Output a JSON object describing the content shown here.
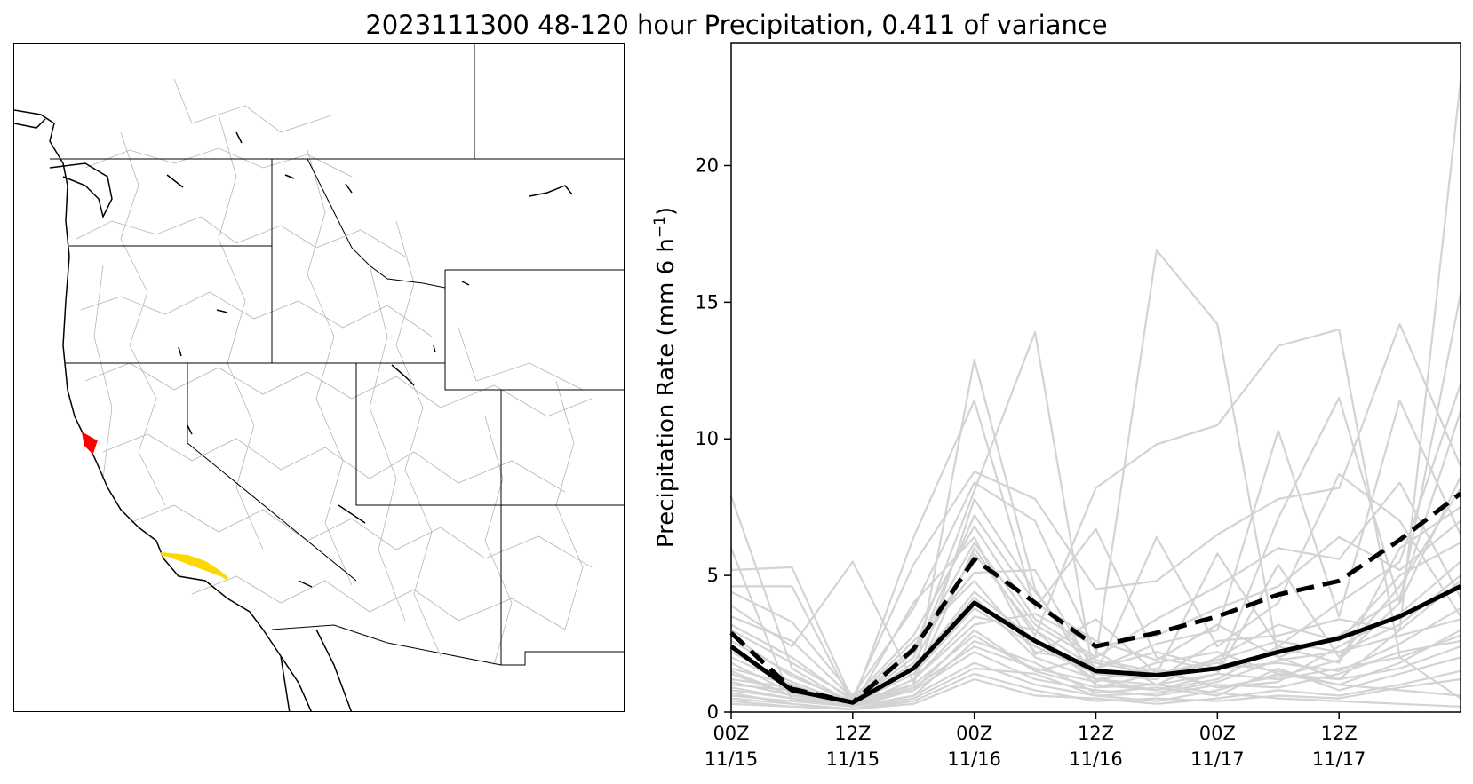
{
  "title": "2023111300 48-120 hour Precipitation, 0.411 of variance",
  "map": {
    "region": "Western United States",
    "highlight_colors": [
      "#ff0000",
      "#ffd700"
    ],
    "state_line_color": "#000000",
    "basin_line_color": "#b0b0b0"
  },
  "chart_data": {
    "type": "line",
    "ylabel_main": "Precipitation Rate (mm 6 h",
    "ylabel_sup": "−1",
    "ylabel_end": ")",
    "ylim": [
      0,
      24.5
    ],
    "xlim": [
      0,
      18
    ],
    "yticks": [
      0,
      5,
      10,
      15,
      20
    ],
    "xticks": [
      {
        "x": 0,
        "line1": "00Z",
        "line2": "11/15"
      },
      {
        "x": 3,
        "line1": "12Z",
        "line2": "11/15"
      },
      {
        "x": 6,
        "line1": "00Z",
        "line2": "11/16"
      },
      {
        "x": 9,
        "line1": "12Z",
        "line2": "11/16"
      },
      {
        "x": 12,
        "line1": "00Z",
        "line2": "11/17"
      },
      {
        "x": 15,
        "line1": "12Z",
        "line2": "11/17"
      }
    ],
    "x": [
      0,
      1.5,
      3,
      4.5,
      6,
      7.5,
      9,
      10.5,
      12,
      13.5,
      15,
      16.5,
      18
    ],
    "series": [
      {
        "style": "solid",
        "color": "#000000",
        "values": [
          2.4,
          0.8,
          0.35,
          1.6,
          4.0,
          2.6,
          1.5,
          1.35,
          1.6,
          2.2,
          2.7,
          3.5,
          4.6
        ]
      },
      {
        "style": "dashed",
        "color": "#000000",
        "values": [
          2.9,
          0.85,
          0.35,
          2.3,
          5.6,
          4.0,
          2.4,
          2.9,
          3.5,
          4.3,
          4.8,
          6.3,
          8.0
        ]
      }
    ],
    "ensemble_color": "#d3d3d3",
    "ensemble": [
      [
        7.9,
        1.6,
        0.3,
        1.0,
        12.9,
        4.5,
        1.2,
        1.0,
        0.7,
        0.5,
        0.4,
        0.3,
        0.2
      ],
      [
        5.2,
        5.3,
        0.4,
        2.2,
        8.1,
        13.9,
        0.9,
        1.4,
        1.8,
        1.5,
        1.0,
        0.8,
        0.6
      ],
      [
        3.9,
        2.4,
        5.5,
        1.1,
        6.0,
        2.8,
        8.2,
        9.8,
        10.5,
        13.4,
        14.0,
        2.0,
        0.5
      ],
      [
        1.0,
        0.8,
        0.2,
        0.8,
        3.0,
        1.5,
        2.0,
        16.9,
        14.2,
        2.0,
        1.2,
        3.0,
        23.1
      ],
      [
        4.6,
        4.6,
        0.3,
        6.4,
        11.4,
        3.8,
        6.7,
        2.0,
        1.5,
        7.1,
        11.5,
        4.0,
        15.3
      ],
      [
        6.0,
        0.4,
        0.5,
        5.4,
        8.8,
        7.8,
        4.5,
        4.8,
        6.5,
        7.8,
        8.2,
        14.2,
        9.0
      ],
      [
        3.2,
        2.0,
        0.4,
        1.0,
        7.8,
        4.4,
        1.6,
        2.5,
        3.0,
        10.3,
        3.5,
        11.4,
        6.5
      ],
      [
        2.0,
        1.0,
        0.2,
        4.0,
        6.4,
        2.1,
        3.4,
        1.4,
        5.8,
        2.4,
        4.0,
        5.5,
        12.0
      ],
      [
        1.5,
        0.6,
        0.3,
        2.4,
        5.1,
        5.2,
        1.4,
        6.4,
        2.4,
        4.0,
        8.7,
        7.0,
        3.5
      ],
      [
        4.4,
        3.3,
        0.6,
        3.8,
        8.4,
        7.0,
        2.2,
        1.0,
        1.4,
        5.4,
        2.0,
        4.6,
        8.2
      ],
      [
        0.8,
        0.5,
        0.2,
        1.2,
        3.5,
        3.0,
        1.0,
        0.8,
        1.2,
        2.4,
        1.8,
        6.0,
        7.5
      ],
      [
        2.6,
        1.4,
        0.3,
        2.0,
        7.2,
        4.0,
        2.6,
        1.9,
        3.2,
        2.0,
        2.8,
        4.2,
        11.0
      ],
      [
        0.5,
        0.3,
        0.1,
        0.6,
        1.8,
        1.0,
        0.6,
        0.4,
        0.8,
        1.4,
        1.0,
        1.8,
        3.0
      ],
      [
        1.2,
        0.9,
        0.4,
        1.6,
        4.4,
        2.6,
        1.2,
        1.6,
        0.9,
        1.1,
        2.4,
        3.6,
        5.5
      ],
      [
        3.0,
        1.8,
        0.5,
        2.8,
        6.8,
        3.4,
        2.0,
        3.4,
        4.6,
        6.0,
        5.6,
        8.4,
        4.2
      ],
      [
        0.3,
        0.2,
        0.1,
        0.3,
        1.2,
        0.6,
        0.5,
        0.3,
        0.5,
        0.8,
        0.6,
        1.0,
        1.5
      ],
      [
        1.8,
        0.7,
        0.2,
        1.0,
        2.8,
        1.5,
        0.9,
        1.0,
        2.0,
        3.2,
        2.6,
        5.0,
        6.2
      ],
      [
        2.2,
        1.1,
        0.3,
        1.8,
        5.8,
        3.0,
        1.6,
        2.2,
        1.6,
        1.8,
        1.5,
        2.5,
        3.8
      ],
      [
        0.6,
        0.4,
        0.2,
        0.8,
        2.2,
        1.2,
        0.8,
        0.6,
        1.0,
        0.9,
        1.4,
        2.2,
        2.6
      ],
      [
        1.4,
        0.6,
        0.3,
        1.4,
        3.8,
        2.4,
        1.4,
        1.2,
        2.6,
        2.8,
        3.4,
        3.0,
        4.8
      ],
      [
        0.9,
        0.5,
        0.2,
        0.6,
        2.6,
        1.8,
        0.7,
        0.9,
        0.6,
        1.6,
        0.8,
        1.4,
        2.0
      ],
      [
        2.8,
        1.3,
        0.4,
        2.6,
        4.8,
        2.2,
        1.8,
        1.4,
        1.9,
        2.6,
        2.2,
        3.2,
        5.0
      ],
      [
        0.4,
        0.2,
        0.1,
        0.4,
        1.4,
        0.8,
        0.4,
        0.5,
        0.4,
        0.6,
        0.5,
        0.9,
        1.2
      ],
      [
        1.6,
        1.0,
        0.2,
        1.2,
        3.2,
        3.6,
        2.4,
        2.8,
        3.8,
        4.6,
        6.4,
        5.2,
        7.0
      ],
      [
        3.5,
        2.6,
        0.5,
        1.6,
        4.2,
        2.0,
        1.2,
        0.8,
        1.4,
        1.2,
        1.6,
        2.0,
        2.8
      ],
      [
        0.7,
        0.3,
        0.1,
        0.5,
        1.6,
        1.4,
        0.6,
        0.7,
        1.1,
        1.9,
        2.2,
        2.8,
        3.4
      ],
      [
        2.4,
        0.9,
        0.3,
        2.2,
        6.2,
        3.2,
        1.9,
        1.5,
        0.9,
        1.3,
        1.9,
        4.0,
        8.6
      ],
      [
        1.1,
        0.6,
        0.2,
        0.9,
        2.4,
        1.6,
        1.1,
        1.8,
        2.2,
        1.4,
        1.2,
        1.6,
        2.4
      ]
    ]
  }
}
